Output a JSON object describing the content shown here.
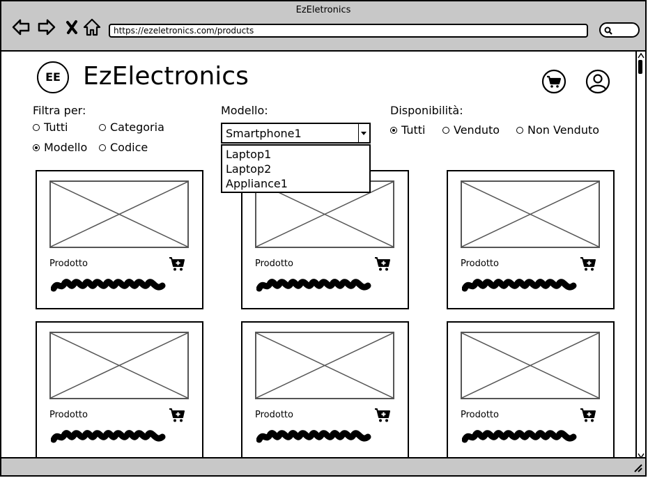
{
  "window": {
    "title": "EzEletronics",
    "url": "https://ezeletronics.com/products"
  },
  "header": {
    "logo_text": "EE",
    "brand": "EzElectronics"
  },
  "filters": {
    "filter_by_label": "Filtra per:",
    "filter_options": [
      {
        "label": "Tutti",
        "checked": false
      },
      {
        "label": "Categoria",
        "checked": false
      },
      {
        "label": "Modello",
        "checked": true
      },
      {
        "label": "Codice",
        "checked": false
      }
    ],
    "model_label": "Modello:",
    "model_selected": "Smartphone1",
    "model_options": [
      "Laptop1",
      "Laptop2",
      "Appliance1"
    ],
    "availability_label": "Disponibilità:",
    "availability_options": [
      {
        "label": "Tutti",
        "checked": true
      },
      {
        "label": "Venduto",
        "checked": false
      },
      {
        "label": "Non Venduto",
        "checked": false
      }
    ]
  },
  "products": [
    {
      "label": "Prodotto"
    },
    {
      "label": "Prodotto"
    },
    {
      "label": "Prodotto"
    },
    {
      "label": "Prodotto"
    },
    {
      "label": "Prodotto"
    },
    {
      "label": "Prodotto"
    }
  ],
  "icons": {
    "back": "arrow-left-icon",
    "forward": "arrow-right-icon",
    "stop": "close-icon",
    "home": "home-icon",
    "search": "search-icon",
    "cart": "shopping-cart-icon",
    "user": "user-icon",
    "add_to_cart": "cart-add-icon"
  },
  "colors": {
    "chrome": "#c8c8c8",
    "placeholder_stroke": "#555555"
  }
}
